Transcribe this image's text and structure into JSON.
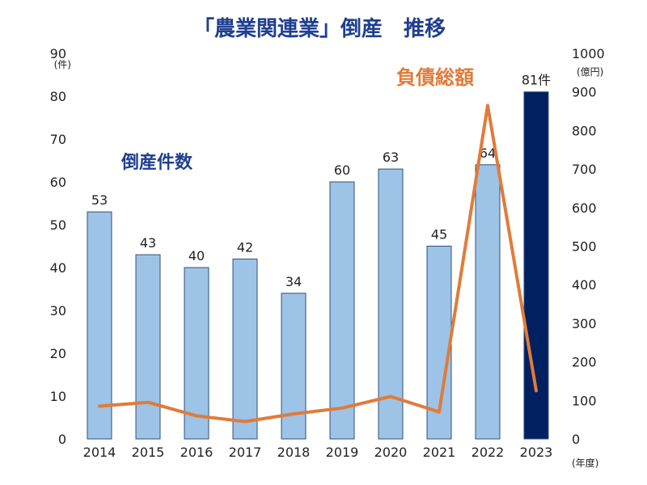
{
  "chart_data": {
    "type": "bar",
    "title": "「農業関連業」倒産　推移",
    "categories": [
      "2014",
      "2015",
      "2016",
      "2017",
      "2018",
      "2019",
      "2020",
      "2021",
      "2022",
      "2023"
    ],
    "x_unit": "(年度)",
    "series": [
      {
        "name": "倒産件数",
        "type": "bar",
        "axis": "left",
        "values": [
          53,
          43,
          40,
          42,
          34,
          60,
          63,
          45,
          64,
          81
        ],
        "labels": [
          "53",
          "43",
          "40",
          "42",
          "34",
          "60",
          "63",
          "45",
          "64",
          "81件"
        ],
        "color": "#9dc3e6",
        "highlight_color": "#002060"
      },
      {
        "name": "負債総額",
        "type": "line",
        "axis": "right",
        "values": [
          85,
          95,
          60,
          45,
          65,
          80,
          110,
          70,
          865,
          125
        ],
        "color": "#e07b39"
      }
    ],
    "y_left": {
      "min": 0,
      "max": 90,
      "ticks": [
        "0",
        "10",
        "20",
        "30",
        "40",
        "50",
        "60",
        "70",
        "80",
        "90"
      ],
      "unit": "(件)"
    },
    "y_right": {
      "min": 0,
      "max": 1000,
      "ticks": [
        "0",
        "100",
        "200",
        "300",
        "400",
        "500",
        "600",
        "700",
        "800",
        "900",
        "1000"
      ],
      "unit": "(億円)"
    },
    "grid": false,
    "legend": "inline labels"
  }
}
